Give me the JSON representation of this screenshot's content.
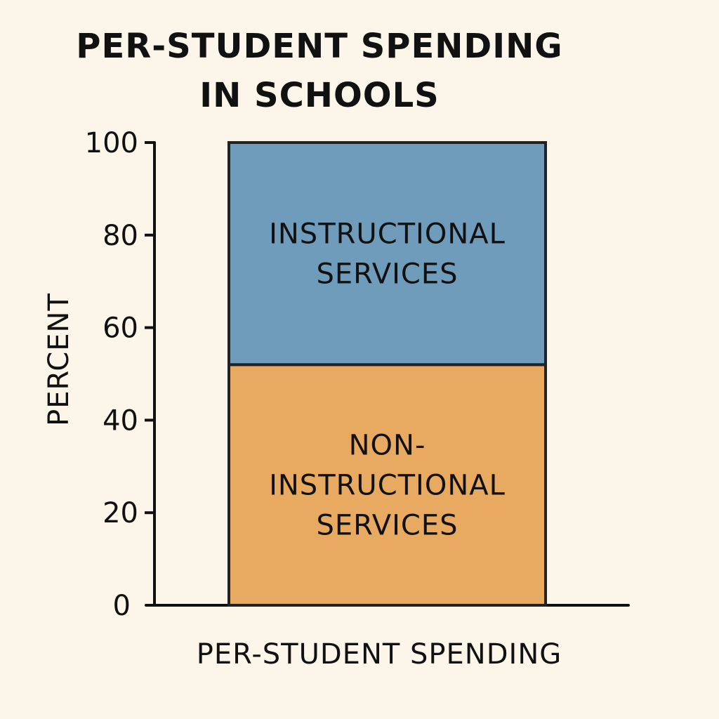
{
  "chart_data": {
    "type": "bar",
    "stacked": true,
    "title": [
      "PER-STUDENT SPENDING",
      "IN SCHOOLS"
    ],
    "xlabel": "PER-STUDENT SPENDING",
    "ylabel": "PERCENT",
    "ylim": [
      0,
      100
    ],
    "yticks": [
      0,
      20,
      40,
      60,
      80,
      100
    ],
    "grid": false,
    "legend": "none",
    "categories": [
      ""
    ],
    "series": [
      {
        "label_lines": [
          "NON-",
          "INSTRUCTIONAL",
          "SERVICES"
        ],
        "values": [
          52
        ],
        "color": "#e8aa60"
      },
      {
        "label_lines": [
          "INSTRUCTIONAL",
          "SERVICES"
        ],
        "values": [
          48
        ],
        "color": "#6f9cbb"
      }
    ]
  }
}
